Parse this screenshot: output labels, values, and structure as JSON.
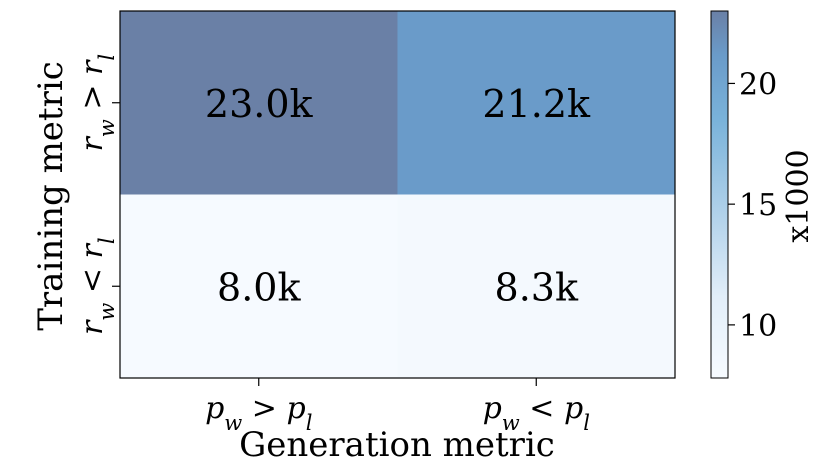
{
  "chart_data": {
    "type": "heatmap",
    "x_categories": [
      "p_w > p_l",
      "p_w < p_l"
    ],
    "y_categories": [
      "r_w > r_l",
      "r_w < r_l"
    ],
    "values": [
      [
        23.0,
        21.2
      ],
      [
        8.0,
        8.3
      ]
    ],
    "value_units": "thousands",
    "cell_labels": [
      [
        "23.0k",
        "21.2k"
      ],
      [
        "8.0k",
        "8.3k"
      ]
    ],
    "xlabel": "Generation metric",
    "ylabel": "Training metric",
    "x_tick_labels": [
      {
        "base": "p",
        "sub1": "w",
        "op": ">",
        "base2": "p",
        "sub2": "l"
      },
      {
        "base": "p",
        "sub1": "w",
        "op": "<",
        "base2": "p",
        "sub2": "l"
      }
    ],
    "y_tick_labels": [
      {
        "base": "r",
        "sub1": "w",
        "op": ">",
        "base2": "r",
        "sub2": "l"
      },
      {
        "base": "r",
        "sub1": "w",
        "op": "<",
        "base2": "r",
        "sub2": "l"
      }
    ],
    "colorbar": {
      "label": "x1000",
      "range": [
        7.8,
        23.0
      ],
      "ticks": [
        10,
        15,
        20
      ],
      "tick_labels": [
        "10",
        "15",
        "20"
      ],
      "colors": [
        "#f7fbff",
        "#6a80a6"
      ]
    }
  }
}
